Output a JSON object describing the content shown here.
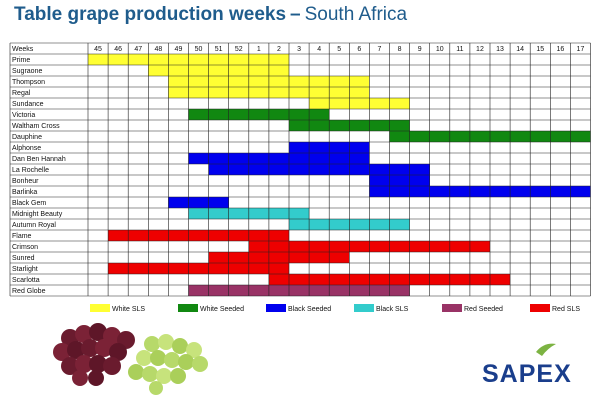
{
  "page": {
    "title_bold": "Table grape production weeks",
    "title_dash": "–",
    "title_rest": "South Africa",
    "logo_text": "SAPEX"
  },
  "chart_data": {
    "type": "table",
    "first_column_header": "Weeks",
    "weeks": [
      "45",
      "46",
      "47",
      "48",
      "49",
      "50",
      "51",
      "52",
      "1",
      "2",
      "3",
      "4",
      "5",
      "6",
      "7",
      "8",
      "9",
      "10",
      "11",
      "12",
      "13",
      "14",
      "15",
      "16",
      "17"
    ],
    "categories": [
      {
        "key": "white_sls",
        "label": "White SLS",
        "color": "#ffff33"
      },
      {
        "key": "white_seeded",
        "label": "White Seeded",
        "color": "#118811"
      },
      {
        "key": "black_seeded",
        "label": "Black Seeded",
        "color": "#0000ee"
      },
      {
        "key": "black_sls",
        "label": "Black SLS",
        "color": "#33cccc"
      },
      {
        "key": "red_seeded",
        "label": "Red Seeded",
        "color": "#993366"
      },
      {
        "key": "red_sls",
        "label": "Red SLS",
        "color": "#ee0000"
      }
    ],
    "varieties": [
      {
        "name": "Prime",
        "category": "white_sls",
        "start": "45",
        "end": "2"
      },
      {
        "name": "Sugraone",
        "category": "white_sls",
        "start": "48",
        "end": "2"
      },
      {
        "name": "Thompson",
        "category": "white_sls",
        "start": "49",
        "end": "6"
      },
      {
        "name": "Regal",
        "category": "white_sls",
        "start": "49",
        "end": "6"
      },
      {
        "name": "Sundance",
        "category": "white_sls",
        "start": "4",
        "end": "8"
      },
      {
        "name": "Victoria",
        "category": "white_seeded",
        "start": "50",
        "end": "4"
      },
      {
        "name": "Waltham Cross",
        "category": "white_seeded",
        "start": "3",
        "end": "8"
      },
      {
        "name": "Dauphine",
        "category": "white_seeded",
        "start": "8",
        "end": "17"
      },
      {
        "name": "Alphonse",
        "category": "black_seeded",
        "start": "3",
        "end": "6"
      },
      {
        "name": "Dan Ben Hannah",
        "category": "black_seeded",
        "start": "50",
        "end": "6"
      },
      {
        "name": "La Rochelle",
        "category": "black_seeded",
        "start": "51",
        "end": "9"
      },
      {
        "name": "Bonheur",
        "category": "black_seeded",
        "start": "7",
        "end": "9"
      },
      {
        "name": "Barlinka",
        "category": "black_seeded",
        "start": "7",
        "end": "17"
      },
      {
        "name": "Black Gem",
        "category": "black_seeded",
        "start": "49",
        "end": "51"
      },
      {
        "name": "Midnight Beauty",
        "category": "black_sls",
        "start": "50",
        "end": "3"
      },
      {
        "name": "Autumn Royal",
        "category": "black_sls",
        "start": "3",
        "end": "8"
      },
      {
        "name": "Flame",
        "category": "red_sls",
        "start": "46",
        "end": "2"
      },
      {
        "name": "Crimson",
        "category": "red_sls",
        "start": "1",
        "end": "12"
      },
      {
        "name": "Sunred",
        "category": "red_sls",
        "start": "51",
        "end": "5"
      },
      {
        "name": "Starlight",
        "category": "red_sls",
        "start": "46",
        "end": "2"
      },
      {
        "name": "Scarlotta",
        "category": "red_sls",
        "start": "2",
        "end": "13"
      },
      {
        "name": "Red Globe",
        "category": "red_seeded",
        "start": "50",
        "end": "8"
      }
    ]
  }
}
